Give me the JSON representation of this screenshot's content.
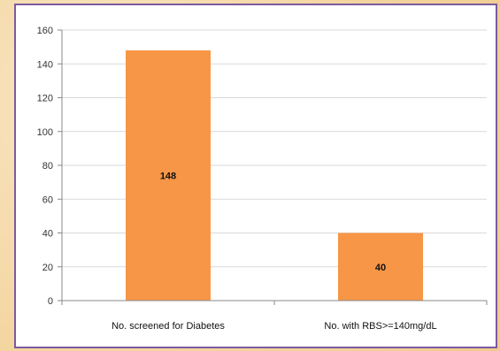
{
  "chart_data": {
    "type": "bar",
    "title": "",
    "xlabel": "",
    "ylabel": "",
    "categories": [
      "No. screened for Diabetes",
      "No. with RBS>=140mg/dL"
    ],
    "values": [
      148,
      40
    ],
    "data_labels": [
      "148",
      "40"
    ],
    "ylim": [
      0,
      160
    ],
    "yticks": [
      0,
      20,
      40,
      60,
      80,
      100,
      120,
      140,
      160
    ],
    "grid": true,
    "legend": "none",
    "bar_color": "#f79646",
    "grid_color": "#d9d9d9",
    "axis_color": "#888888"
  }
}
